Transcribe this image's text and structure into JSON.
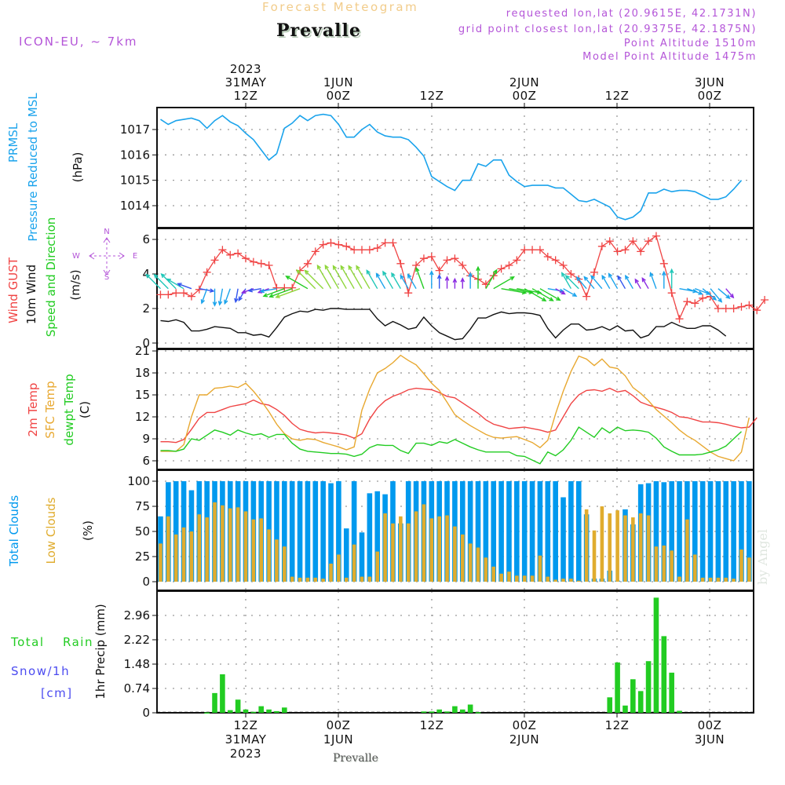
{
  "header": {
    "title": "Forecast Meteogram",
    "station": "Prevalle",
    "model": "ICON-EU, ~ 7km",
    "requested": "requested lon,lat (20.9615E, 42.1731N)",
    "grid_point": "grid point closest lon,lat (20.9375E, 42.1875N)",
    "point_altitude": "Point Altitude 1510m",
    "model_altitude": "Model Point Altitude 1475m"
  },
  "footer": {
    "station": "Prevalle",
    "watermark": "by Angel"
  },
  "colors": {
    "pressure": "#1aa3ec",
    "gust": "#f04444",
    "wind": "#111111",
    "wind_label_green": "#22cc22",
    "t2m": "#f04444",
    "sfc": "#e8a830",
    "dewpt": "#22cc22",
    "total_clouds": "#0099ee",
    "low_clouds": "#e0ac2e",
    "rain": "#22cc22",
    "snow": "#4b4bf0",
    "compass": "#b455d8"
  },
  "chart_data": [
    {
      "type": "line",
      "panel": "pressure",
      "labels": [
        "PRMSL",
        "Pressure Reduced to MSL",
        "(hPa)"
      ],
      "ylabel": "(hPa)",
      "yticks": [
        1014,
        1015,
        1016,
        1017
      ],
      "ylim": [
        1013.15,
        1017.9
      ],
      "x_start": "2023-05-31 01Z",
      "x_step_hours": 1,
      "series": [
        {
          "name": "PRMSL",
          "values": [
            1017.4,
            1017.2,
            1017.35,
            1017.4,
            1017.45,
            1017.35,
            1017.05,
            1017.35,
            1017.55,
            1017.3,
            1017.15,
            1016.85,
            1016.6,
            1016.2,
            1015.8,
            1016.05,
            1017.05,
            1017.25,
            1017.55,
            1017.35,
            1017.55,
            1017.6,
            1017.55,
            1017.2,
            1016.7,
            1016.7,
            1017.0,
            1017.2,
            1016.9,
            1016.75,
            1016.7,
            1016.7,
            1016.6,
            1016.3,
            1015.95,
            1015.15,
            1014.95,
            1014.75,
            1014.6,
            1015.0,
            1015.0,
            1015.65,
            1015.55,
            1015.8,
            1015.8,
            1015.2,
            1014.95,
            1014.75,
            1014.8,
            1014.8,
            1014.8,
            1014.7,
            1014.7,
            1014.45,
            1014.2,
            1014.15,
            1014.25,
            1014.1,
            1013.95,
            1013.55,
            1013.45,
            1013.55,
            1013.8,
            1014.5,
            1014.5,
            1014.65,
            1014.55,
            1014.6,
            1014.6,
            1014.55,
            1014.4,
            1014.25,
            1014.25,
            1014.35,
            1014.65,
            1015.0
          ]
        }
      ]
    },
    {
      "type": "line",
      "panel": "wind",
      "labels": [
        "Wind GUST",
        "10m Wind",
        "Speed and Direction",
        "(m/s)"
      ],
      "ylabel": "(m/s)",
      "compass": {
        "n": "N",
        "s": "S",
        "w": "W",
        "e": "E"
      },
      "yticks": [
        0,
        2,
        4,
        6
      ],
      "ylim": [
        -0.1,
        6.6
      ],
      "x_start": "2023-05-31 01Z",
      "x_step_hours": 1,
      "series": [
        {
          "name": "Wind GUST",
          "marker": "+",
          "values": [
            2.8,
            2.8,
            2.9,
            2.9,
            2.7,
            3.1,
            4.1,
            4.8,
            5.4,
            5.1,
            5.2,
            4.9,
            4.7,
            4.6,
            4.5,
            3.2,
            3.2,
            3.2,
            4.2,
            4.6,
            5.3,
            5.7,
            5.8,
            5.7,
            5.6,
            5.4,
            5.4,
            5.4,
            5.5,
            5.8,
            5.8,
            4.6,
            2.9,
            4.5,
            4.9,
            5.0,
            4.2,
            4.8,
            4.9,
            4.5,
            3.9,
            3.7,
            3.4,
            3.9,
            4.3,
            4.5,
            4.8,
            5.4,
            5.4,
            5.4,
            5.0,
            4.8,
            4.5,
            4.0,
            3.7,
            2.7,
            4.1,
            5.6,
            5.9,
            5.3,
            5.4,
            5.9,
            5.3,
            5.9,
            6.2,
            4.6,
            2.9,
            1.4,
            2.4,
            2.3,
            2.6,
            2.7,
            2.0,
            2.0,
            2.0,
            2.1,
            2.2,
            1.9,
            2.5
          ]
        },
        {
          "name": "10m Wind",
          "values": [
            1.3,
            1.25,
            1.35,
            1.2,
            0.7,
            0.7,
            0.8,
            0.95,
            0.9,
            0.85,
            0.6,
            0.6,
            0.45,
            0.5,
            0.35,
            0.9,
            1.5,
            1.7,
            1.85,
            1.8,
            1.95,
            1.9,
            2.0,
            2.0,
            1.95,
            1.95,
            1.95,
            1.95,
            1.4,
            1.0,
            1.25,
            1.05,
            0.8,
            0.9,
            1.5,
            1.0,
            0.6,
            0.4,
            0.2,
            0.25,
            0.8,
            1.45,
            1.45,
            1.65,
            1.8,
            1.7,
            1.75,
            1.75,
            1.7,
            1.6,
            0.85,
            0.3,
            0.75,
            1.1,
            1.1,
            0.75,
            0.8,
            0.95,
            0.75,
            1.0,
            0.7,
            0.75,
            0.3,
            0.45,
            0.95,
            0.95,
            1.2,
            1.0,
            0.85,
            0.85,
            1.0,
            1.0,
            0.75,
            0.4
          ]
        },
        {
          "name": "Wind Direction",
          "values_deg": [
            315,
            315,
            315,
            300,
            290,
            100,
            200,
            180,
            190,
            200,
            190,
            210,
            250,
            260,
            250,
            260,
            250,
            250,
            250,
            300,
            315,
            315,
            330,
            330,
            330,
            330,
            330,
            330,
            330,
            330,
            330,
            330,
            330,
            330,
            340,
            0,
            0,
            0,
            0,
            0,
            0,
            0,
            30,
            60,
            100,
            100,
            100,
            120,
            120,
            120,
            100,
            120,
            120,
            330,
            315,
            320,
            320,
            320,
            330,
            330,
            330,
            330,
            330,
            330,
            340,
            0,
            0,
            100,
            110,
            110,
            130,
            140,
            130,
            140,
            130,
            100,
            120,
            110,
            130,
            30,
            30,
            330,
            330,
            0,
            0,
            0,
            0,
            0,
            30,
            90
          ]
        }
      ]
    },
    {
      "type": "line",
      "panel": "temperature",
      "labels": [
        "2m Temp",
        "SFC Temp",
        "dewpt Temp",
        "(C)"
      ],
      "ylabel": "(C)",
      "yticks": [
        6,
        9,
        12,
        15,
        18,
        21
      ],
      "ylim": [
        5.3,
        21.1
      ],
      "x_start": "2023-05-31 01Z",
      "x_step_hours": 1,
      "series": [
        {
          "name": "2m Temp",
          "values": [
            8.6,
            8.6,
            8.5,
            8.9,
            10.3,
            11.8,
            12.6,
            12.6,
            13.0,
            13.4,
            13.6,
            13.8,
            14.3,
            13.8,
            13.6,
            13.0,
            12.2,
            11.1,
            10.3,
            10.0,
            9.8,
            9.9,
            9.8,
            9.7,
            9.5,
            9.1,
            9.7,
            11.7,
            13.2,
            14.2,
            14.8,
            15.2,
            15.7,
            15.9,
            15.8,
            15.7,
            15.3,
            14.8,
            14.6,
            13.9,
            13.2,
            12.5,
            11.6,
            11.0,
            10.7,
            10.4,
            10.5,
            10.6,
            10.4,
            10.2,
            9.9,
            10.2,
            12.0,
            13.8,
            15.0,
            15.6,
            15.7,
            15.5,
            15.9,
            15.4,
            15.6,
            14.9,
            14.0,
            13.6,
            13.3,
            13.0,
            12.6,
            12.0,
            11.9,
            11.6,
            11.3,
            11.3,
            11.2,
            11.0,
            10.7,
            10.5,
            10.6,
            11.9
          ]
        },
        {
          "name": "SFC Temp",
          "values": [
            7.3,
            7.3,
            7.3,
            8.2,
            12.0,
            15.0,
            15.0,
            15.9,
            16.0,
            16.2,
            16.0,
            16.6,
            15.5,
            14.2,
            12.7,
            11.0,
            9.7,
            9.0,
            8.8,
            9.0,
            8.9,
            8.5,
            8.2,
            7.9,
            7.5,
            7.9,
            12.9,
            15.8,
            18.0,
            18.6,
            19.4,
            20.4,
            19.7,
            19.1,
            17.9,
            16.6,
            15.6,
            14.0,
            12.3,
            11.5,
            10.8,
            10.2,
            9.6,
            9.2,
            9.1,
            9.2,
            9.3,
            8.9,
            8.5,
            7.8,
            8.8,
            12.4,
            15.5,
            18.2,
            20.3,
            19.9,
            19.0,
            19.9,
            18.8,
            18.6,
            17.6,
            16.0,
            15.2,
            14.2,
            13.0,
            12.1,
            11.2,
            10.2,
            9.4,
            8.8,
            8.0,
            7.2,
            6.6,
            6.3,
            6.0,
            7.2,
            11.9
          ]
        },
        {
          "name": "dewpt Temp",
          "values": [
            7.4,
            7.4,
            7.3,
            7.6,
            9.0,
            8.8,
            9.5,
            10.2,
            9.9,
            9.5,
            10.2,
            9.8,
            9.5,
            9.7,
            9.2,
            9.6,
            9.6,
            8.4,
            7.6,
            7.3,
            7.2,
            7.1,
            7.0,
            7.0,
            6.9,
            6.6,
            6.9,
            7.8,
            8.2,
            8.1,
            8.1,
            7.4,
            7.0,
            8.4,
            8.4,
            8.1,
            8.6,
            8.4,
            8.9,
            8.4,
            7.9,
            7.5,
            7.2,
            7.2,
            7.2,
            7.2,
            6.7,
            6.6,
            6.1,
            5.6,
            7.2,
            6.7,
            7.5,
            8.8,
            10.6,
            9.9,
            9.2,
            10.5,
            9.8,
            10.6,
            10.1,
            10.2,
            10.1,
            9.9,
            9.1,
            7.9,
            7.3,
            6.8,
            6.8,
            6.8,
            6.9,
            7.2,
            7.5,
            8.0,
            9.0,
            10.0
          ]
        }
      ]
    },
    {
      "type": "bar",
      "panel": "clouds",
      "labels": [
        "Total Clouds",
        "Low Clouds",
        "(%)"
      ],
      "ylabel": "(%)",
      "yticks": [
        0,
        25,
        50,
        75,
        100
      ],
      "ylim": [
        -7,
        110
      ],
      "x_start": "2023-05-31 01Z",
      "x_step_hours": 1,
      "series": [
        {
          "name": "Total Clouds",
          "values": [
            65,
            99,
            100,
            100,
            91,
            100,
            100,
            100,
            100,
            100,
            100,
            100,
            100,
            100,
            100,
            100,
            100,
            100,
            100,
            100,
            100,
            100,
            98,
            100,
            53,
            100,
            49,
            88,
            90,
            87,
            100,
            58,
            100,
            100,
            100,
            100,
            100,
            100,
            100,
            100,
            100,
            100,
            100,
            100,
            100,
            100,
            100,
            100,
            100,
            100,
            100,
            100,
            84,
            100,
            100,
            67,
            3,
            3,
            11,
            1,
            72,
            57,
            97,
            98,
            100,
            99,
            100,
            100,
            100,
            100,
            100,
            100,
            100,
            100,
            100,
            100,
            100,
            100,
            97,
            100,
            99,
            92
          ]
        },
        {
          "name": "Low Clouds",
          "values": [
            38,
            65,
            47,
            54,
            50,
            67,
            64,
            79,
            76,
            73,
            74,
            70,
            62,
            63,
            52,
            42,
            35,
            5,
            4,
            4,
            4,
            3,
            18,
            27,
            4,
            37,
            5,
            5,
            30,
            68,
            58,
            65,
            58,
            70,
            77,
            63,
            65,
            66,
            55,
            47,
            38,
            34,
            24,
            15,
            8,
            10,
            6,
            6,
            6,
            26,
            5,
            2,
            3,
            3,
            1,
            72,
            51,
            75,
            68,
            71,
            66,
            64,
            68,
            66,
            35,
            36,
            31,
            5,
            62,
            27,
            4,
            4,
            4,
            4,
            3,
            32,
            24
          ]
        }
      ]
    },
    {
      "type": "bar",
      "panel": "precipitation",
      "labels": [
        "Total Rain",
        "Snow/1h",
        "[cm]",
        "1hr Precip (mm)"
      ],
      "ylabel": "1hr Precip (mm)",
      "yticks": [
        0,
        0.74,
        1.48,
        2.22,
        2.96
      ],
      "ylim": [
        0,
        3.7
      ],
      "x_start": "2023-05-31 01Z",
      "x_step_hours": 1,
      "series": [
        {
          "name": "Total Rain",
          "values": [
            0,
            0,
            0,
            0,
            0,
            0,
            0.01,
            0.6,
            1.17,
            0.08,
            0.4,
            0.1,
            0.03,
            0.2,
            0.1,
            0.05,
            0.16,
            0,
            0,
            0,
            0,
            0,
            0,
            0,
            0,
            0,
            0,
            0,
            0,
            0,
            0,
            0,
            0,
            0,
            0.04,
            0.04,
            0.1,
            0.04,
            0.2,
            0.1,
            0.25,
            0.02,
            0,
            0,
            0,
            0,
            0,
            0,
            0,
            0,
            0,
            0,
            0,
            0,
            0,
            0,
            0,
            0,
            0.47,
            1.53,
            0.22,
            1.02,
            0.66,
            1.57,
            3.5,
            2.33,
            1.22,
            0.06,
            0,
            0,
            0,
            0,
            0,
            0,
            0,
            0,
            0,
            0
          ]
        },
        {
          "name": "Snow/1h",
          "values": [
            0,
            0,
            0,
            0,
            0,
            0,
            0,
            0,
            0,
            0,
            0,
            0,
            0,
            0,
            0,
            0,
            0,
            0,
            0,
            0,
            0,
            0,
            0,
            0,
            0,
            0,
            0,
            0,
            0,
            0,
            0,
            0,
            0,
            0,
            0,
            0,
            0,
            0,
            0,
            0,
            0,
            0,
            0,
            0,
            0,
            0,
            0,
            0,
            0,
            0,
            0,
            0,
            0,
            0,
            0,
            0,
            0,
            0,
            0,
            0,
            0,
            0,
            0,
            0,
            0,
            0,
            0,
            0,
            0,
            0,
            0,
            0,
            0,
            0,
            0,
            0,
            0,
            0
          ]
        }
      ]
    }
  ],
  "time_axis": {
    "top": [
      {
        "lines": [
          "2023",
          "31MAY",
          "12Z"
        ]
      },
      {
        "lines": [
          "1JUN",
          "00Z"
        ]
      },
      {
        "lines": [
          "12Z"
        ]
      },
      {
        "lines": [
          "2JUN",
          "00Z"
        ]
      },
      {
        "lines": [
          "12Z"
        ]
      },
      {
        "lines": [
          "3JUN",
          "00Z"
        ]
      }
    ],
    "bottom": [
      {
        "lines": [
          "12Z",
          "31MAY",
          "2023"
        ]
      },
      {
        "lines": [
          "00Z",
          "1JUN"
        ]
      },
      {
        "lines": [
          "12Z"
        ]
      },
      {
        "lines": [
          "00Z",
          "2JUN"
        ]
      },
      {
        "lines": [
          "12Z"
        ]
      },
      {
        "lines": [
          "00Z",
          "3JUN"
        ]
      }
    ]
  }
}
